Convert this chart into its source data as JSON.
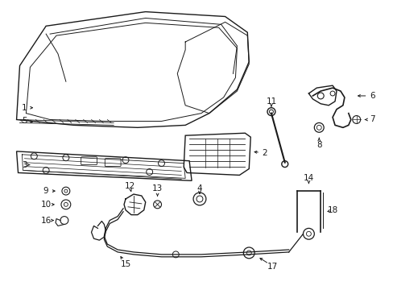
{
  "background_color": "#ffffff",
  "line_color": "#1a1a1a",
  "text_color": "#1a1a1a",
  "figsize": [
    4.89,
    3.6
  ],
  "dpi": 100
}
